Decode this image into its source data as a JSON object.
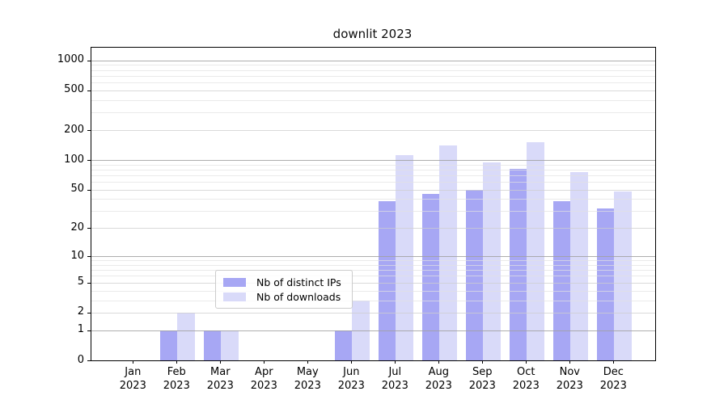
{
  "chart_data": {
    "type": "bar",
    "title": "downlit 2023",
    "categories": [
      "Jan",
      "Feb",
      "Mar",
      "Apr",
      "May",
      "Jun",
      "Jul",
      "Aug",
      "Sep",
      "Oct",
      "Nov",
      "Dec"
    ],
    "year_label": "2023",
    "series": [
      {
        "name": "Nb of distinct IPs",
        "color": "#a7a7f4",
        "values": [
          0,
          1,
          1,
          0,
          0,
          1,
          38,
          45,
          50,
          82,
          38,
          32
        ]
      },
      {
        "name": "Nb of downloads",
        "color": "#d9daf9",
        "values": [
          0,
          2,
          1,
          0,
          0,
          3,
          112,
          140,
          94,
          150,
          75,
          48
        ]
      }
    ],
    "yticks": [
      0,
      1,
      2,
      5,
      10,
      20,
      50,
      100,
      200,
      500,
      1000
    ],
    "scale": "log1p",
    "ylim": [
      0,
      1340
    ],
    "xlabel": "",
    "ylabel": "",
    "grid": "horizontal major + faint log minors, drawn over bars",
    "legend_position": "inside bottom-center",
    "major_grid_values": [
      1,
      10,
      100,
      1000
    ],
    "colors": {
      "grid_major": "#a0a0a0",
      "grid_mid": "#cdcdcd",
      "grid_minor": "#e1e1e1",
      "spine": "#000000",
      "legend_border": "#cccccc"
    }
  }
}
